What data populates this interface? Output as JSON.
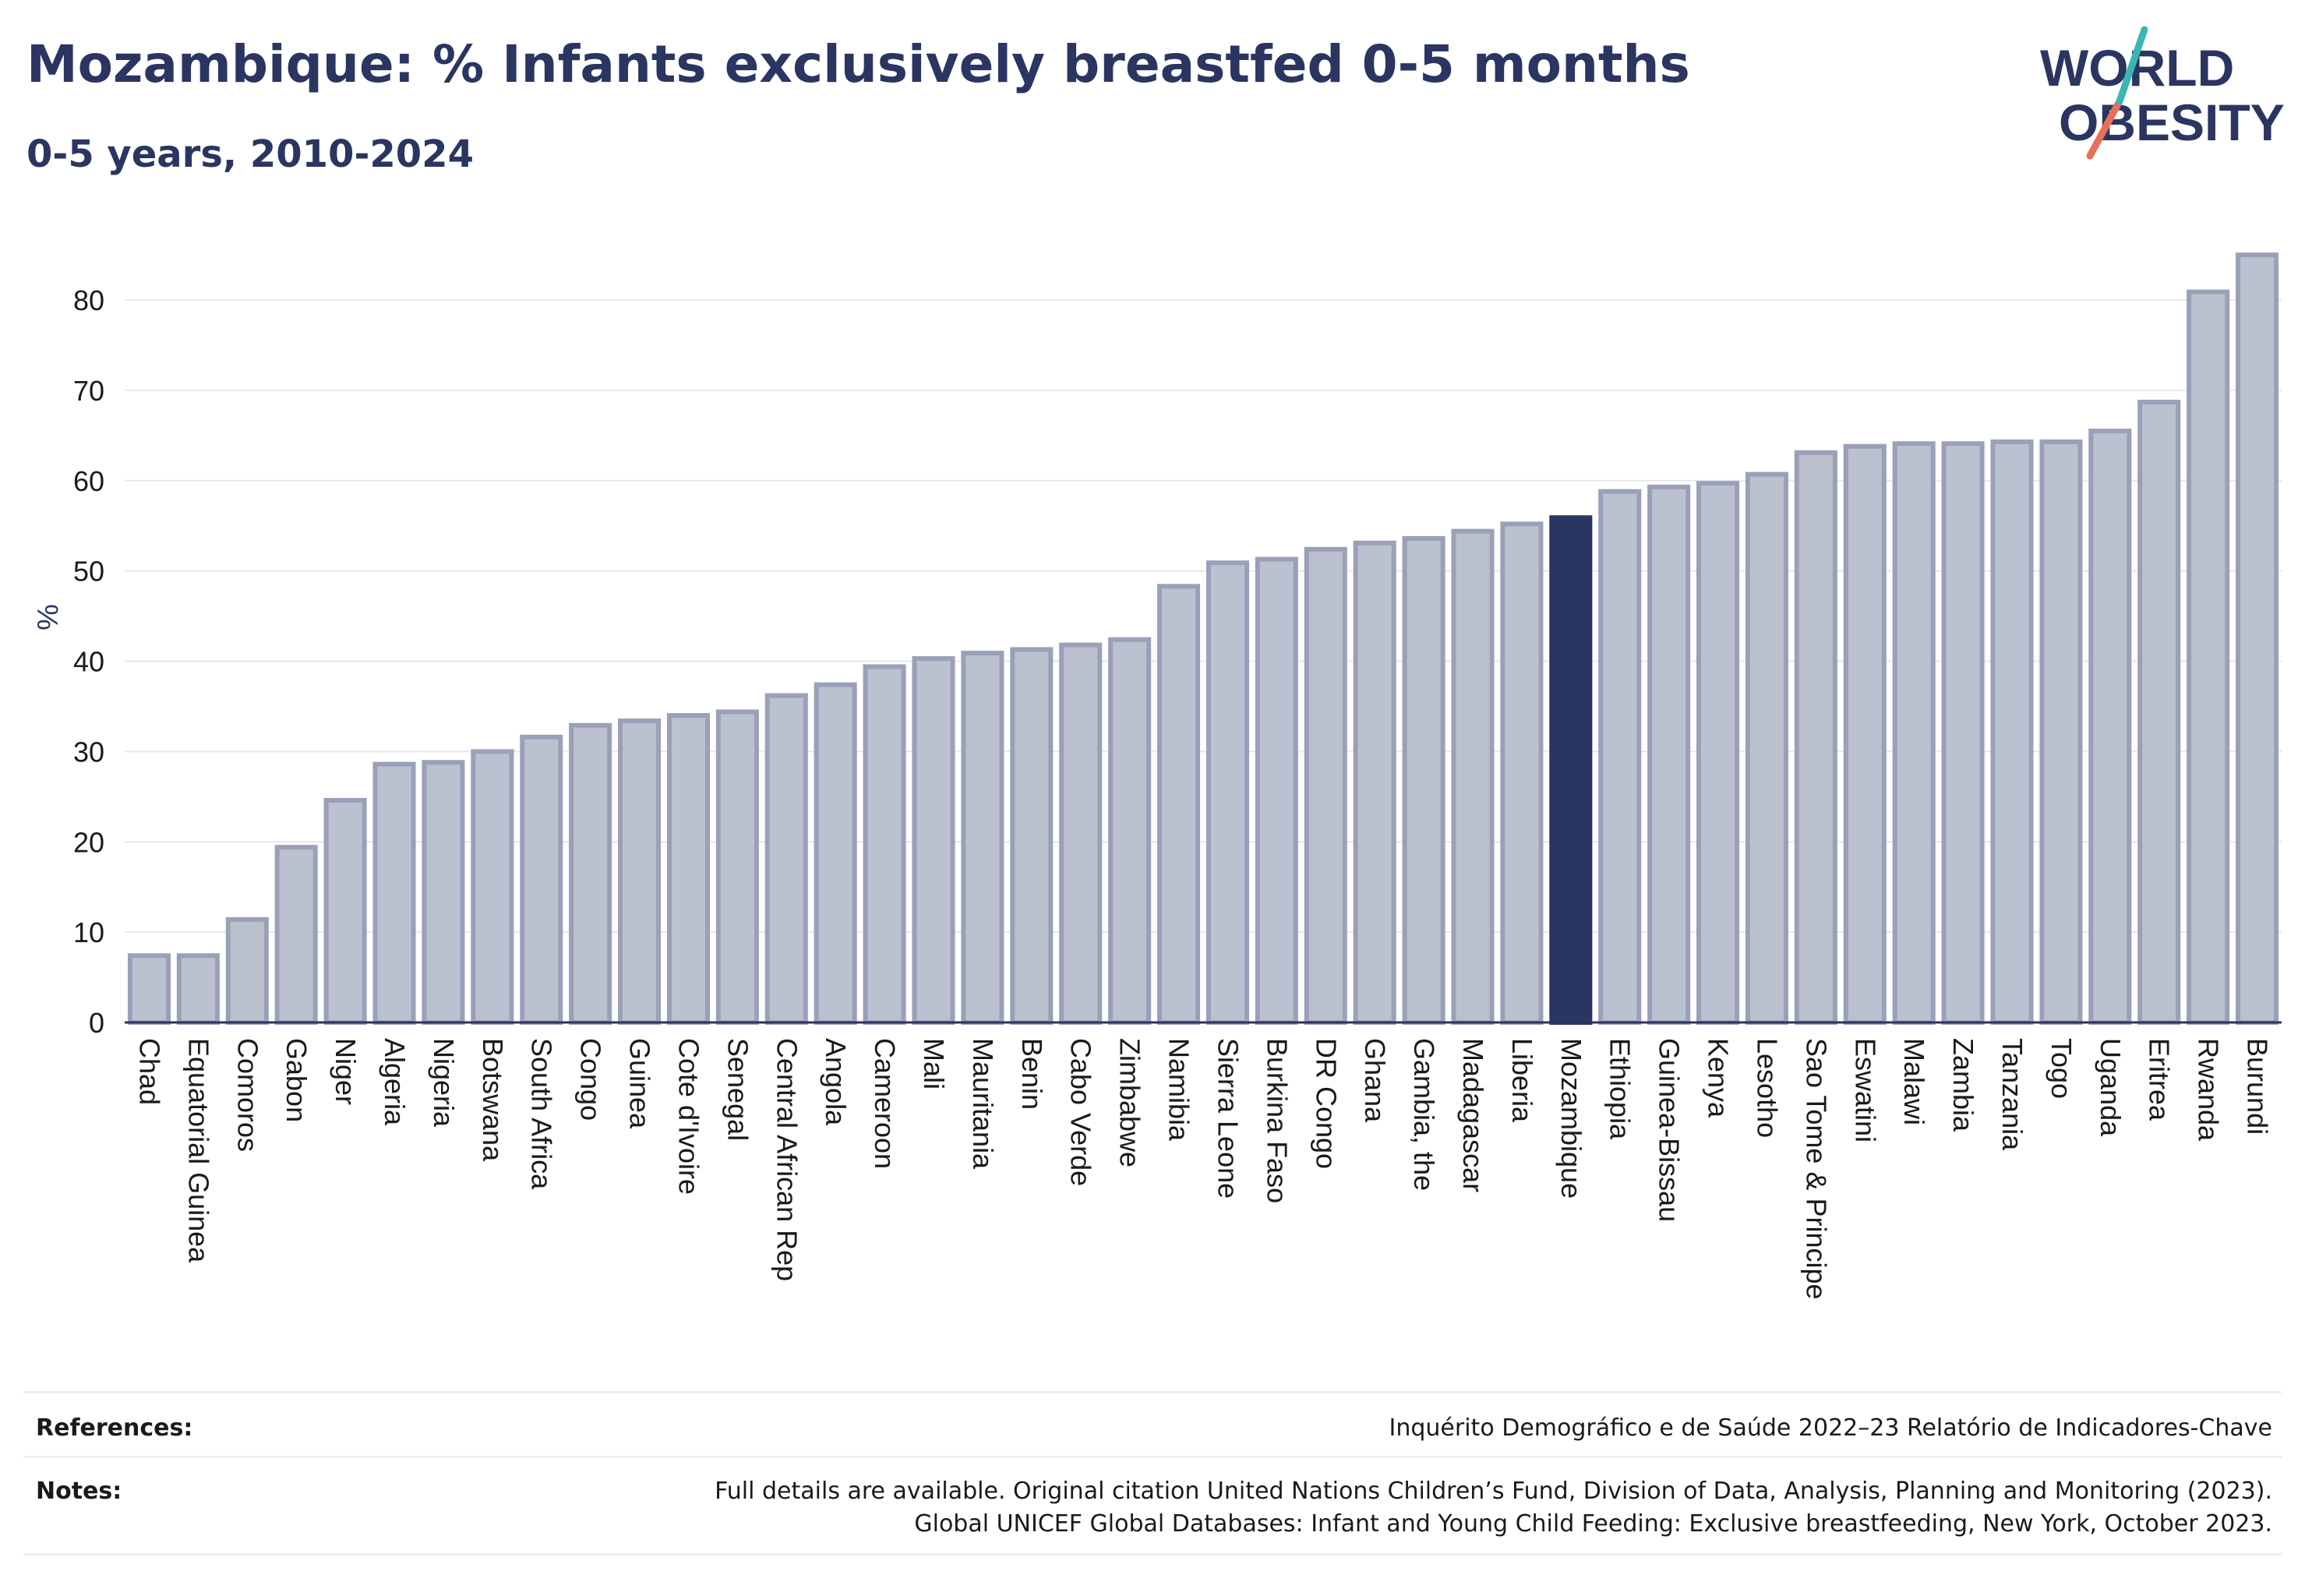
{
  "header": {
    "title": "Mozambique: % Infants exclusively breastfed 0-5 months",
    "subtitle": "0-5 years, 2010-2024"
  },
  "logo": {
    "line1": "WORLD",
    "line2": "OBESITY"
  },
  "chart_data": {
    "type": "bar",
    "ylabel": "%",
    "ylim": [
      0,
      87
    ],
    "yticks": [
      0,
      10,
      20,
      30,
      40,
      50,
      60,
      70,
      80
    ],
    "grid": true,
    "highlight": "Mozambique",
    "categories": [
      "Chad",
      "Equatorial Guinea",
      "Comoros",
      "Gabon",
      "Niger",
      "Algeria",
      "Nigeria",
      "Botswana",
      "South Africa",
      "Congo",
      "Guinea",
      "Cote d'Ivoire",
      "Senegal",
      "Central African Rep",
      "Angola",
      "Cameroon",
      "Mali",
      "Mauritania",
      "Benin",
      "Cabo Verde",
      "Zimbabwe",
      "Namibia",
      "Sierra Leone",
      "Burkina Faso",
      "DR Congo",
      "Ghana",
      "Gambia, the",
      "Madagascar",
      "Liberia",
      "Mozambique",
      "Ethiopia",
      "Guinea-Bissau",
      "Kenya",
      "Lesotho",
      "Sao Tome & Principe",
      "Eswatini",
      "Malawi",
      "Zambia",
      "Tanzania",
      "Togo",
      "Uganda",
      "Eritrea",
      "Rwanda",
      "Burundi"
    ],
    "values": [
      7.4,
      7.4,
      11.4,
      19.4,
      24.6,
      28.6,
      28.8,
      30.0,
      31.6,
      32.9,
      33.4,
      34.0,
      34.4,
      36.2,
      37.4,
      39.4,
      40.3,
      40.9,
      41.3,
      41.8,
      42.4,
      48.3,
      50.9,
      51.3,
      52.4,
      53.1,
      53.6,
      54.4,
      55.2,
      55.9,
      58.8,
      59.3,
      59.7,
      60.7,
      63.1,
      63.8,
      64.1,
      64.1,
      64.3,
      64.3,
      65.5,
      68.7,
      80.9,
      85.0
    ],
    "colors": {
      "bar": "#bcc1d0",
      "bar_edge": "#9aa0b8",
      "highlight": "#2b3561",
      "axis": "#2b3561",
      "grid": "#e6e7ec"
    }
  },
  "footer": {
    "references_label": "References:",
    "references_text": "Inquérito Demográfico e de Saúde 2022–23 Relatório de Indicadores-Chave",
    "notes_label": "Notes:",
    "notes_line1": "Full details are available. Original citation United Nations Children’s Fund, Division of Data, Analysis, Planning and Monitoring (2023).",
    "notes_line2": "Global UNICEF Global Databases: Infant and Young Child Feeding: Exclusive breastfeeding, New York, October 2023."
  }
}
